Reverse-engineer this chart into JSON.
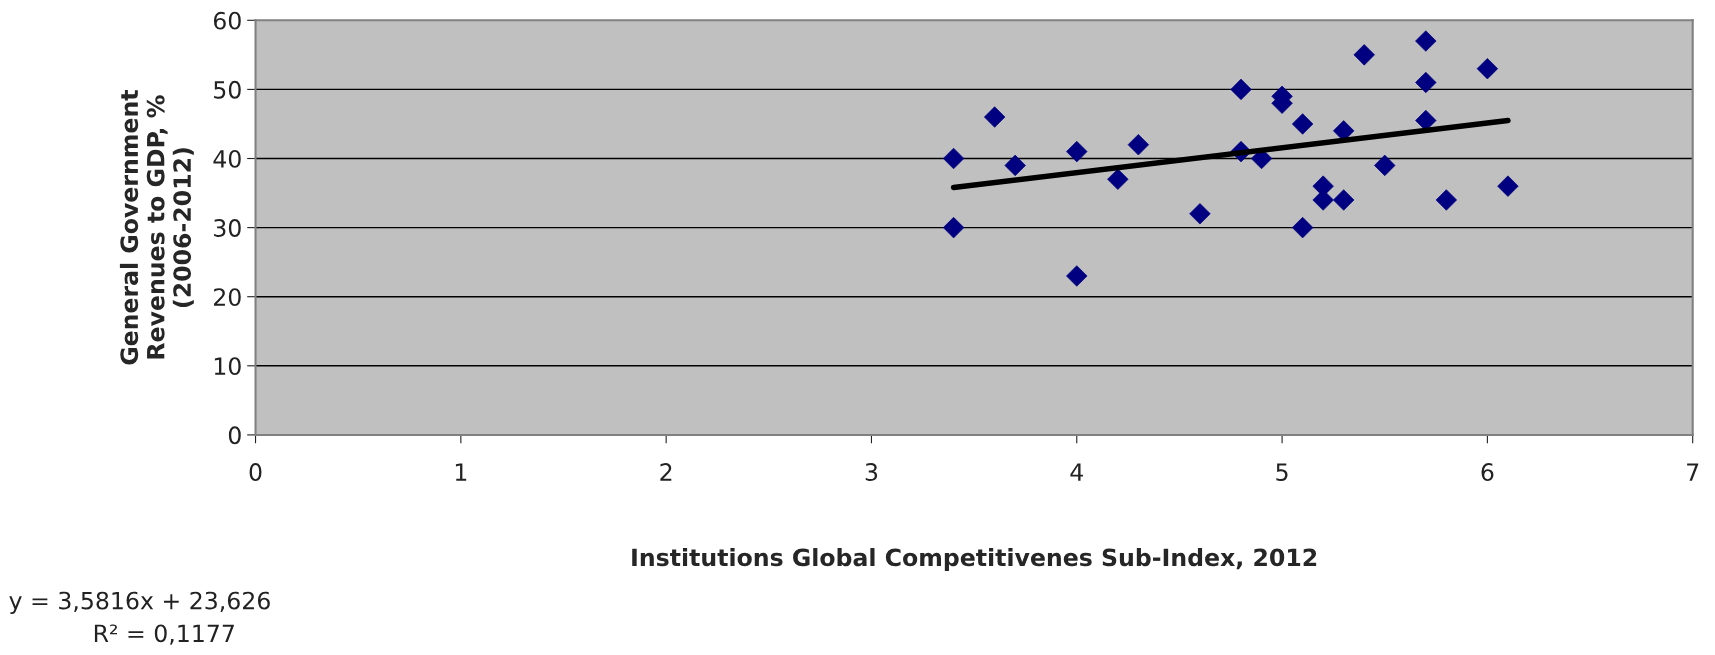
{
  "chart_data": {
    "type": "scatter",
    "xlabel": "Institutions Global Competitivenes Sub-Index, 2012",
    "ylabel": "General Government\nRevenues to GDP, %\n(2006-2012)",
    "annotations": [
      "y = 3,5816x + 23,626",
      "R² = 0,1177"
    ],
    "series": [
      {
        "color": "#000080",
        "marker": "diamond",
        "x": [
          3.4,
          3.4,
          3.6,
          3.7,
          4.0,
          4.0,
          4.2,
          4.3,
          4.6,
          4.8,
          4.8,
          4.9,
          5.0,
          5.0,
          5.1,
          5.1,
          5.2,
          5.2,
          5.3,
          5.3,
          5.4,
          5.5,
          5.7,
          5.7,
          5.7,
          5.8,
          6.0,
          6.1
        ],
        "values": [
          40,
          30,
          46,
          39,
          41,
          23,
          37,
          42,
          32,
          50,
          41,
          40,
          49,
          48,
          45,
          30,
          36,
          34,
          44,
          34,
          55,
          39,
          57,
          51,
          45.5,
          34,
          53,
          36
        ]
      },
      {
        "type": "line",
        "color": "#000000",
        "marker": "none",
        "x": [
          3.4,
          6.1
        ],
        "values": [
          35.8,
          45.5
        ]
      }
    ],
    "xlim": [
      0,
      7
    ],
    "xticks": [
      0,
      1,
      2,
      3,
      4,
      5,
      6,
      7
    ],
    "ylim": [
      0,
      60
    ],
    "yticks": [
      0,
      10,
      20,
      30,
      40,
      50,
      60
    ],
    "grid": "y",
    "legend": false
  }
}
